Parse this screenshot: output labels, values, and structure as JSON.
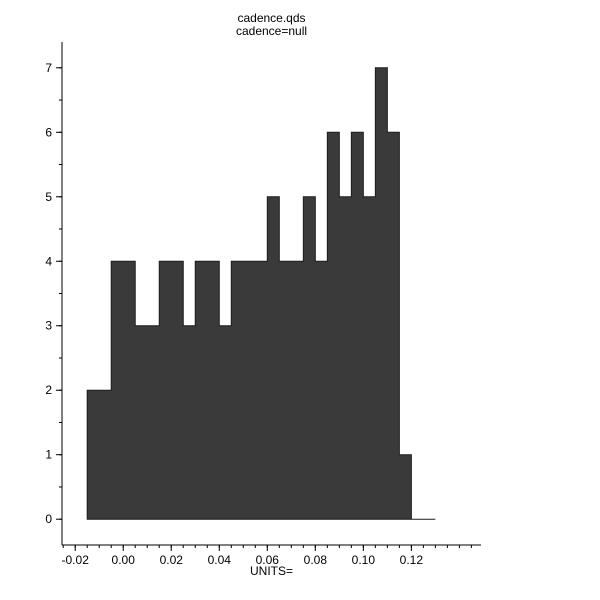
{
  "page": {
    "background": "#ffffff"
  },
  "chart_data": {
    "type": "histogram",
    "title": "cadence.qds",
    "subtitle": "cadence=null",
    "xlabel": "UNITS=",
    "ylabel": "",
    "legend": "none",
    "grid": "off",
    "bar_color": "#3a3a3a",
    "bar_outline_color": "#1c1c1c",
    "axis_color": "#000000",
    "text_color": "#000000",
    "xlim": [
      -0.0255,
      0.149
    ],
    "ylim": [
      -0.4,
      7.4
    ],
    "x_tick_values": [
      -0.02,
      0,
      0.02,
      0.04,
      0.06,
      0.08,
      0.1,
      0.12
    ],
    "x_tick_labels": [
      "-0.02",
      "0.00",
      "0.02",
      "0.04",
      "0.06",
      "0.08",
      "0.10",
      "0.12"
    ],
    "x_minor_step": 0.005,
    "y_tick_values": [
      0,
      1,
      2,
      3,
      4,
      5,
      6,
      7
    ],
    "y_tick_labels": [
      "0",
      "1",
      "2",
      "3",
      "4",
      "5",
      "6",
      "7"
    ],
    "y_minor_step": 0.5,
    "bin_edges": [
      -0.015,
      -0.01,
      -0.005,
      0,
      0.005,
      0.01,
      0.015,
      0.02,
      0.025,
      0.03,
      0.035,
      0.04,
      0.045,
      0.05,
      0.055,
      0.06,
      0.065,
      0.07,
      0.075,
      0.08,
      0.085,
      0.09,
      0.095,
      0.1,
      0.105,
      0.11,
      0.115,
      0.12,
      0.125,
      0.13
    ],
    "counts": [
      2,
      2,
      4,
      4,
      3,
      3,
      4,
      4,
      3,
      4,
      4,
      3,
      4,
      4,
      4,
      5,
      4,
      4,
      5,
      4,
      6,
      5,
      6,
      5,
      7,
      6,
      1,
      0,
      0
    ],
    "y_max_observed": 7
  }
}
